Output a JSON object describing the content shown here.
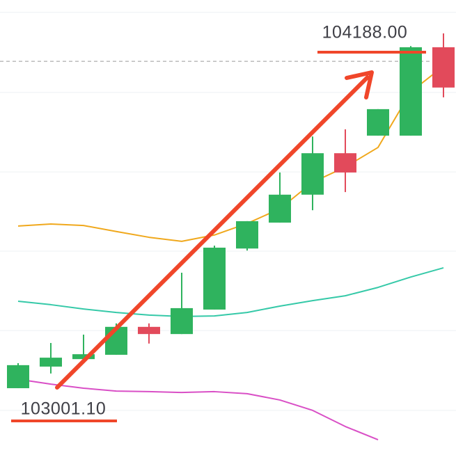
{
  "chart_data": {
    "type": "candlestick",
    "ylim": [
      102770,
      104350
    ],
    "grid_values": [
      104307,
      104029,
      103753,
      103478,
      103202,
      102925
    ],
    "price_line": 104137,
    "up_color": "#2fb35e",
    "down_color": "#e24a5b",
    "open": [
      103002,
      103077,
      103103,
      103118,
      103215,
      103190,
      103275,
      103487,
      103577,
      103674,
      103818,
      103879,
      103879,
      104186
    ],
    "high": [
      103089,
      103159,
      103188,
      103227,
      103227,
      103403,
      103497,
      103582,
      103751,
      103876,
      103901,
      103971,
      104190,
      104234
    ],
    "low": [
      103002,
      103053,
      103103,
      103118,
      103157,
      103190,
      103275,
      103480,
      103577,
      103620,
      103683,
      103879,
      103879,
      104012
    ],
    "close": [
      103082,
      103108,
      103120,
      103215,
      103190,
      103280,
      103490,
      103582,
      103674,
      103818,
      103751,
      103971,
      104186,
      104046
    ],
    "series": [
      {
        "color": "#f0a81c",
        "values": [
          103565,
          103572,
          103567,
          103546,
          103526,
          103512,
          103534,
          103574,
          103625,
          103717,
          103770,
          103838,
          104031,
          104120
        ]
      },
      {
        "color": "#35c9a8",
        "values": [
          103304,
          103292,
          103277,
          103265,
          103256,
          103251,
          103253,
          103265,
          103287,
          103306,
          103323,
          103352,
          103388,
          103420
        ]
      },
      {
        "color": "#d94fc6",
        "values": [
          103033,
          103016,
          103002,
          102992,
          102990,
          102987,
          102990,
          102983,
          102961,
          102925,
          102869,
          102823,
          null,
          null
        ]
      }
    ],
    "annotations": [
      {
        "text": "104188.00",
        "value": 104188
      },
      {
        "text": "103001.10",
        "value": 103001.1
      }
    ]
  }
}
